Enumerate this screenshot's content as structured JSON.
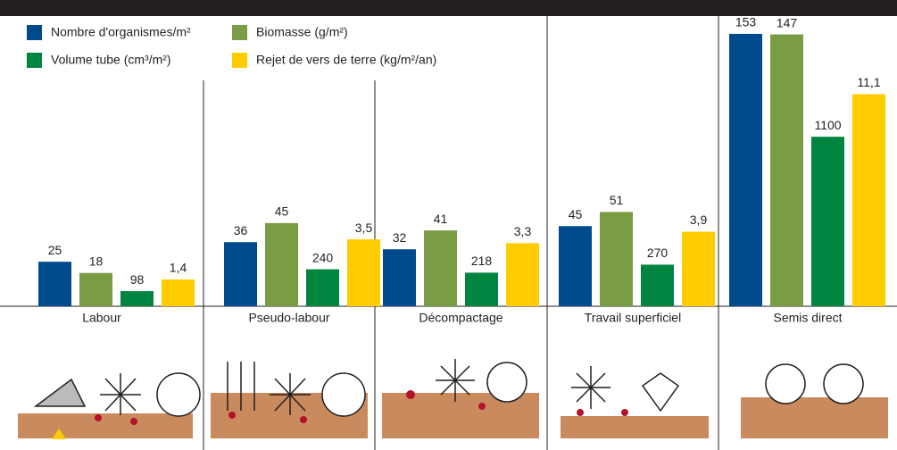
{
  "chart_data": {
    "type": "bar",
    "categories": [
      "Labour",
      "Pseudo-labour",
      "Décompactage",
      "Travail superficiel",
      "Semis direct"
    ],
    "series": [
      {
        "name": "Nombre d'organismes/m²",
        "color": "#004b8d",
        "values": [
          25,
          36,
          32,
          45,
          153
        ],
        "ylim": [
          0,
          161
        ]
      },
      {
        "name": "Biomasse (g/m²)",
        "color": "#7a9c45",
        "values": [
          18,
          45,
          41,
          51,
          147
        ],
        "ylim": [
          0,
          155
        ]
      },
      {
        "name": "Volume tube (cm³/m²)",
        "color": "#00843f",
        "values": [
          98,
          240,
          218,
          270,
          1100
        ],
        "ylim": [
          0,
          1860
        ]
      },
      {
        "name": "Rejet de vers de terre (kg/m²/an)",
        "color": "#ffcc00",
        "values": [
          1.4,
          3.5,
          3.3,
          3.9,
          11.1
        ],
        "value_labels": [
          "1,4",
          "3,5",
          "3,3",
          "3,9",
          "11,1"
        ],
        "ylim": [
          0,
          15
        ]
      }
    ]
  }
}
